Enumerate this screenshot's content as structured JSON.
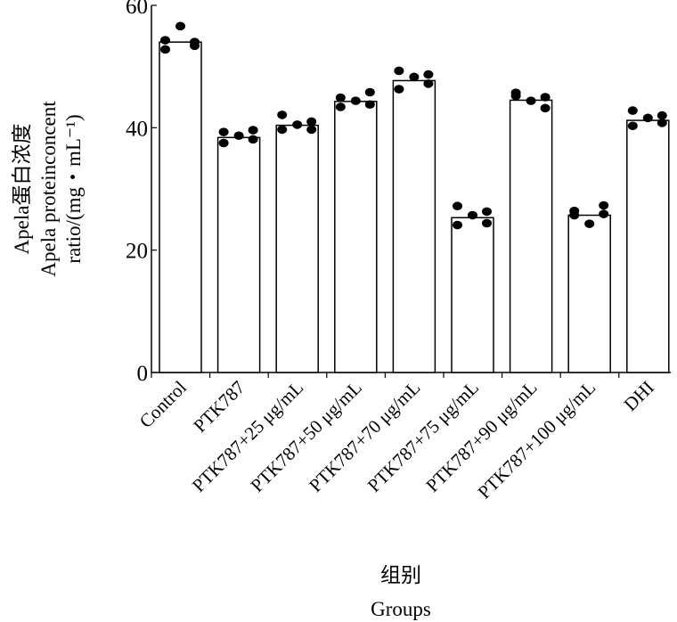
{
  "chart_data": {
    "type": "bar",
    "title": "",
    "xlabel_cn": "组别",
    "xlabel": "Groups",
    "ylabel_lines": [
      "Apela蛋白浓度",
      "Apela proteinconcent",
      "ratio/(mg・mL⁻¹)"
    ],
    "ylim": [
      0,
      60
    ],
    "yticks": [
      0,
      20,
      40,
      60
    ],
    "grid": false,
    "categories": [
      "Control",
      "PTK787",
      "PTK787+25  μg/mL",
      "PTK787+50  μg/mL",
      "PTK787+70  μg/mL",
      "PTK787+75  μg/mL",
      "PTK787+90  μg/mL",
      "PTK787+100  μg/mL",
      "DHI"
    ],
    "values": [
      54.0,
      38.4,
      40.4,
      44.3,
      47.7,
      25.3,
      44.5,
      25.7,
      41.2
    ],
    "points": [
      [
        54.3,
        52.8,
        56.6,
        54.0,
        53.4
      ],
      [
        39.3,
        37.5,
        38.7,
        39.6,
        38.1
      ],
      [
        39.7,
        42.1,
        40.5,
        41.0,
        39.7
      ],
      [
        44.9,
        43.4,
        44.4,
        45.8,
        43.8
      ],
      [
        49.3,
        46.3,
        48.3,
        48.7,
        47.2
      ],
      [
        27.2,
        24.1,
        25.7,
        26.3,
        24.4
      ],
      [
        45.2,
        45.7,
        44.4,
        43.2,
        45.0
      ],
      [
        26.4,
        25.7,
        24.3,
        27.3,
        25.9
      ],
      [
        42.8,
        40.3,
        41.6,
        42.0,
        40.8
      ]
    ]
  }
}
